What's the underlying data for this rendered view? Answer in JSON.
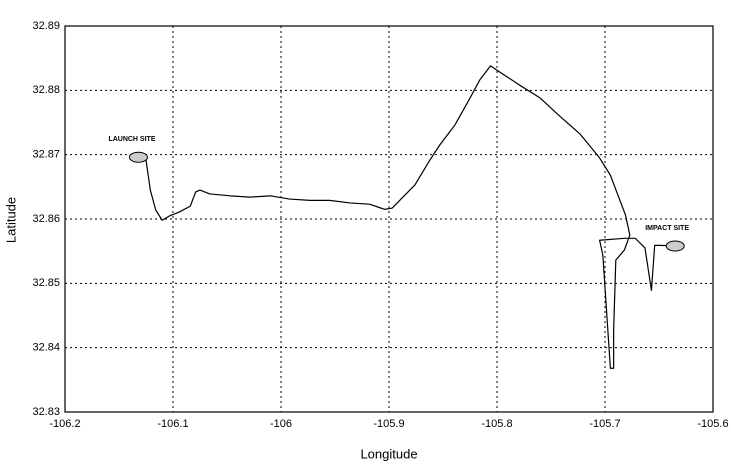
{
  "chart_data": {
    "type": "line",
    "x_label": "Longitude",
    "y_label": "Latitude",
    "xlim": [
      -106.2,
      -105.6
    ],
    "xticks": [
      -106.2,
      -106.1,
      -106,
      -105.9,
      -105.8,
      -105.7,
      -105.6
    ],
    "ylim": [
      32.83,
      32.89
    ],
    "yticks": [
      32.83,
      32.84,
      32.85,
      32.86,
      32.87,
      32.88,
      32.89
    ],
    "grid": true,
    "series": [
      {
        "color": "#000000",
        "x": [
          -106.125,
          -106.121,
          -106.116,
          -106.11,
          -106.103,
          -106.094,
          -106.084,
          -106.079,
          -106.075,
          -106.066,
          -106.047,
          -106.029,
          -106.01,
          -105.992,
          -105.973,
          -105.955,
          -105.936,
          -105.918,
          -105.904,
          -105.897,
          -105.89,
          -105.876,
          -105.862,
          -105.853,
          -105.839,
          -105.825,
          -105.816,
          -105.806,
          -105.797,
          -105.779,
          -105.76,
          -105.742,
          -105.723,
          -105.705,
          -105.695,
          -105.688,
          -105.681,
          -105.677,
          -105.682,
          -105.69,
          -105.692,
          -105.692,
          -105.695,
          -105.698,
          -105.702,
          -105.705,
          -105.682,
          -105.672,
          -105.663,
          -105.657,
          -105.654,
          -105.649,
          -105.635
        ],
        "values": [
          32.8692,
          32.8645,
          32.8614,
          32.8598,
          32.8605,
          32.8611,
          32.862,
          32.8642,
          32.8645,
          32.8639,
          32.8636,
          32.8634,
          32.8636,
          32.8631,
          32.8629,
          32.8629,
          32.8625,
          32.8623,
          32.8615,
          32.8617,
          32.8629,
          32.8653,
          32.8692,
          32.8715,
          32.8746,
          32.8788,
          32.8816,
          32.8838,
          32.8828,
          32.8808,
          32.8788,
          32.876,
          32.8732,
          32.8695,
          32.8668,
          32.8637,
          32.8606,
          32.8575,
          32.8552,
          32.8536,
          32.8427,
          32.8368,
          32.8368,
          32.8443,
          32.8544,
          32.8567,
          32.857,
          32.857,
          32.8555,
          32.8489,
          32.8559,
          32.8559,
          32.8558
        ]
      }
    ],
    "annotations": [
      {
        "text": "LAUNCH SITE",
        "x": -106.132,
        "y": 32.8696
      },
      {
        "text": "IMPACT SITE",
        "x": -105.635,
        "y": 32.8558
      }
    ]
  }
}
